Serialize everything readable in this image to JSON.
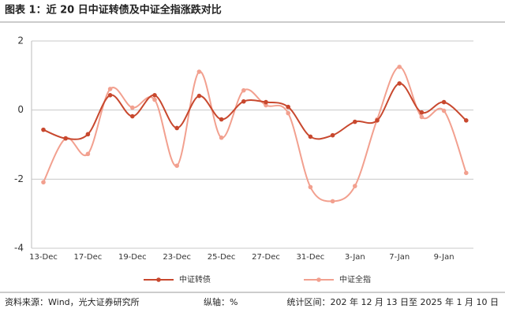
{
  "chart_data": {
    "type": "line",
    "title": "图表 1：近 20 日中证转债及中证全指涨跌对比",
    "categories": [
      "13-Dec",
      null,
      "17-Dec",
      null,
      "19-Dec",
      null,
      "23-Dec",
      null,
      "25-Dec",
      null,
      "27-Dec",
      null,
      "31-Dec",
      null,
      "3-Jan",
      null,
      "7-Jan",
      null,
      "9-Jan",
      null
    ],
    "series": [
      {
        "name": "中证转债",
        "color": "#c8482e",
        "values": [
          -0.57,
          -0.82,
          -0.7,
          0.43,
          -0.18,
          0.43,
          -0.52,
          0.41,
          -0.27,
          0.25,
          0.23,
          0.09,
          -0.77,
          -0.73,
          -0.34,
          -0.3,
          0.77,
          -0.07,
          0.23,
          -0.3
        ]
      },
      {
        "name": "中证全指",
        "color": "#f2a08f",
        "values": [
          -2.09,
          -0.82,
          -1.27,
          0.61,
          0.07,
          0.3,
          -1.61,
          1.11,
          -0.8,
          0.57,
          0.14,
          -0.09,
          -2.23,
          -2.64,
          -2.2,
          -0.27,
          1.25,
          -0.2,
          -0.02,
          -1.82
        ]
      }
    ],
    "ylim": [
      -4,
      2
    ],
    "yticks": [
      -4,
      -2,
      0,
      2
    ],
    "smooth": true,
    "legend": "bottom",
    "notes": [
      "资料来源：Wind，光大证券研究所",
      "纵轴：%",
      "统计区间：202 年 12 月 13 日至 2025 年 1 月 10 日"
    ]
  }
}
